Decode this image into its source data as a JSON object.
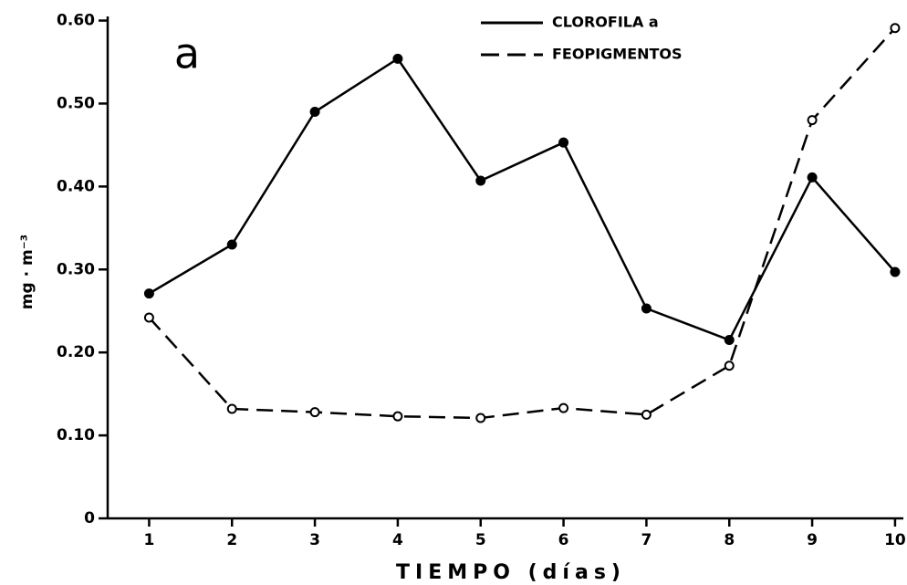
{
  "chart_data": {
    "type": "line",
    "panel_label": "a",
    "x_label": "TIEMPO  (días)",
    "y_label": "mg · m⁻³",
    "x": [
      1,
      2,
      3,
      4,
      5,
      6,
      7,
      8,
      9,
      10
    ],
    "series": [
      {
        "name": "CLOROFILA a",
        "color": "#000000",
        "line_style": "solid",
        "marker": "filled",
        "values": [
          0.271,
          0.33,
          0.49,
          0.554,
          0.407,
          0.453,
          0.253,
          0.215,
          0.411,
          0.297
        ]
      },
      {
        "name": "FEOPIGMENTOS",
        "color": "#000000",
        "line_style": "dashed",
        "marker": "open",
        "values": [
          0.242,
          0.132,
          0.128,
          0.123,
          0.121,
          0.133,
          0.125,
          0.184,
          0.48,
          0.591
        ]
      }
    ],
    "xlim": [
      0.5,
      10.1
    ],
    "xticks": [
      1,
      2,
      3,
      4,
      5,
      6,
      7,
      8,
      9,
      10
    ],
    "ylim": [
      0,
      0.605
    ],
    "yticks": [
      0,
      {
        "value": 0.1,
        "label": "0.10"
      },
      {
        "value": 0.2,
        "label": "0.20"
      },
      {
        "value": 0.3,
        "label": "0.30"
      },
      {
        "value": 0.4,
        "label": "0.40"
      },
      {
        "value": 0.5,
        "label": "0.50"
      },
      {
        "value": 0.6,
        "label": "0.60"
      }
    ],
    "legend": "top-right"
  }
}
